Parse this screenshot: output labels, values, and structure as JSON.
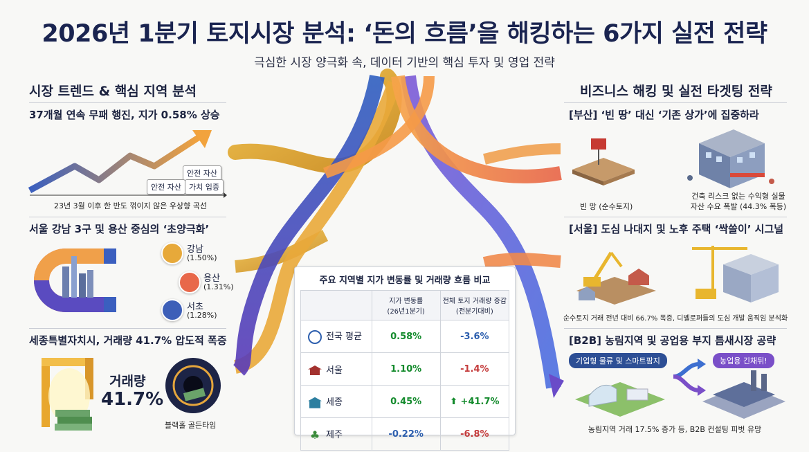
{
  "header": {
    "title": "2026년 1분기 토지시장 분석: ‘돈의 흐름’을 해킹하는 6가지 실전 전략",
    "subtitle": "극심한 시장 양극화 속, 데이터 기반의 핵심 투자 및 영업 전략"
  },
  "left": {
    "heading": "시장 트렌드 & 핵심 지역 분석",
    "trend": {
      "title": "37개월 연속 무패 행진, 지가 0.58% 상승",
      "tags": [
        "안전 자산",
        "안전 자산",
        "가치 입증"
      ],
      "caption": "23년 3월 이후 한 반도 꺾이지 않은 우상향 곡선"
    },
    "seoul": {
      "title": "서울 강남 3구 및 용산 중심의 ‘초양극화’",
      "regions": [
        {
          "name": "강남",
          "value": "(1.50%)"
        },
        {
          "name": "용산",
          "value": "(1.31%)"
        },
        {
          "name": "서초",
          "value": "(1.28%)"
        }
      ]
    },
    "sejong": {
      "title": "세종특별자치시, 거래량 41.7% 압도적 폭증",
      "big_label": "거래량",
      "big_value": "41.7%",
      "blackhole_caption": "블랙홀 골든타임"
    }
  },
  "center": {
    "table_title": "주요 지역별 지가 변동률 및 거래량 흐름 비교",
    "col1_header": "지가 변동률\n(26년1분기)",
    "col2_header": "전체 토지 거래량 증감\n(전분기대비)",
    "rows": [
      {
        "icon": "globe-icon",
        "region": "전국 평균",
        "change": "0.58%",
        "volume": "-3.6%"
      },
      {
        "icon": "palace-icon",
        "region": "서울",
        "change": "1.10%",
        "volume": "-1.4%"
      },
      {
        "icon": "government-building-icon",
        "region": "세종",
        "change": "0.45%",
        "volume": "+41.7%"
      },
      {
        "icon": "palm-tree-icon",
        "region": "제주",
        "change": "-0.22%",
        "volume": "-6.8%"
      }
    ]
  },
  "right": {
    "heading": "비즈니스 해킹 및 실전 타겟팅 전략",
    "busan": {
      "title": "[부산] ‘빈 땅’ 대신 ‘기존 상가’에 집중하라",
      "left_caption": "빈 망 (순수토지)",
      "right_caption": "건축 리스크 없는 수익형 실물\n자산 수요 폭발 (44.3% 폭등)"
    },
    "seoul": {
      "title": "[서울] 도심 나대지 및 노후 주택 ‘싹쓸이’ 시그널",
      "caption": "순수토지 거래 전년 대비 66.7% 폭증, 디벨로퍼들의 도심 개발 움직임 분석화"
    },
    "b2b": {
      "title": "[B2B] 농림지역 및 공업용 부지 틈새시장 공략",
      "pill_left": "기업형 물류 및 스마트팜지",
      "pill_right": "농업용 긴채뒤!",
      "caption": "농림지역 거래 17.5% 증가 등, B2B 컨설팅 피벗 유망"
    }
  },
  "colors": {
    "navy": "#1a2450",
    "green": "#138a2c",
    "red": "#c43b3b",
    "blue": "#2d5fae",
    "gold": "#e7b13a",
    "orange": "#f0864a",
    "purple": "#6a4bc8"
  }
}
